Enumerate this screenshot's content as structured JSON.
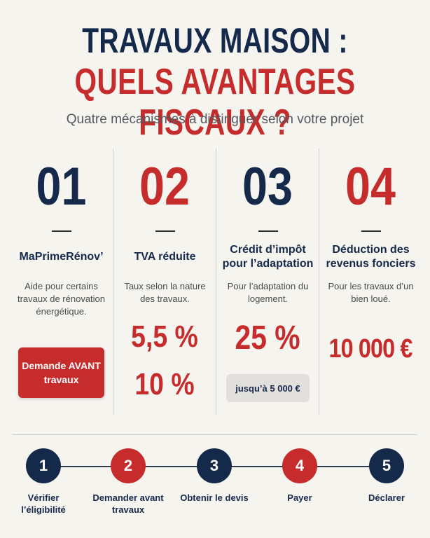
{
  "header": {
    "title_line1": "TRAVAUX MAISON :",
    "title_line2": "QUELS AVANTAGES FISCAUX ?",
    "subtitle": "Quatre mécanismes à distinguer selon votre projet"
  },
  "colors": {
    "navy": "#15294b",
    "red": "#c62c2c",
    "background": "#f6f4ef"
  },
  "columns": [
    {
      "number": "01",
      "title": "MaPrimeRénov’",
      "description": "Aide pour certains travaux de rénovation énergétique.",
      "button_label": "Demande AVANT travaux"
    },
    {
      "number": "02",
      "title": "TVA réduite",
      "description": "Taux selon la nature des travaux.",
      "value1": "5,5 %",
      "value2": "10 %"
    },
    {
      "number": "03",
      "title": "Crédit d’impôt pour l’adaptation",
      "description": "Pour l’adaptation du logement.",
      "value1": "25 %",
      "note": "jusqu’à 5 000 €"
    },
    {
      "number": "04",
      "title": "Déduction des revenus fonciers",
      "description": "Pour les travaux d’un bien loué.",
      "value1": "10 000 €"
    }
  ],
  "steps": [
    {
      "number": "1",
      "label": "Vérifier l’éligibilité",
      "color": "navy"
    },
    {
      "number": "2",
      "label": "Demander avant travaux",
      "color": "red"
    },
    {
      "number": "3",
      "label": "Obtenir le devis",
      "color": "navy"
    },
    {
      "number": "4",
      "label": "Payer",
      "color": "red"
    },
    {
      "number": "5",
      "label": "Déclarer",
      "color": "navy"
    }
  ]
}
